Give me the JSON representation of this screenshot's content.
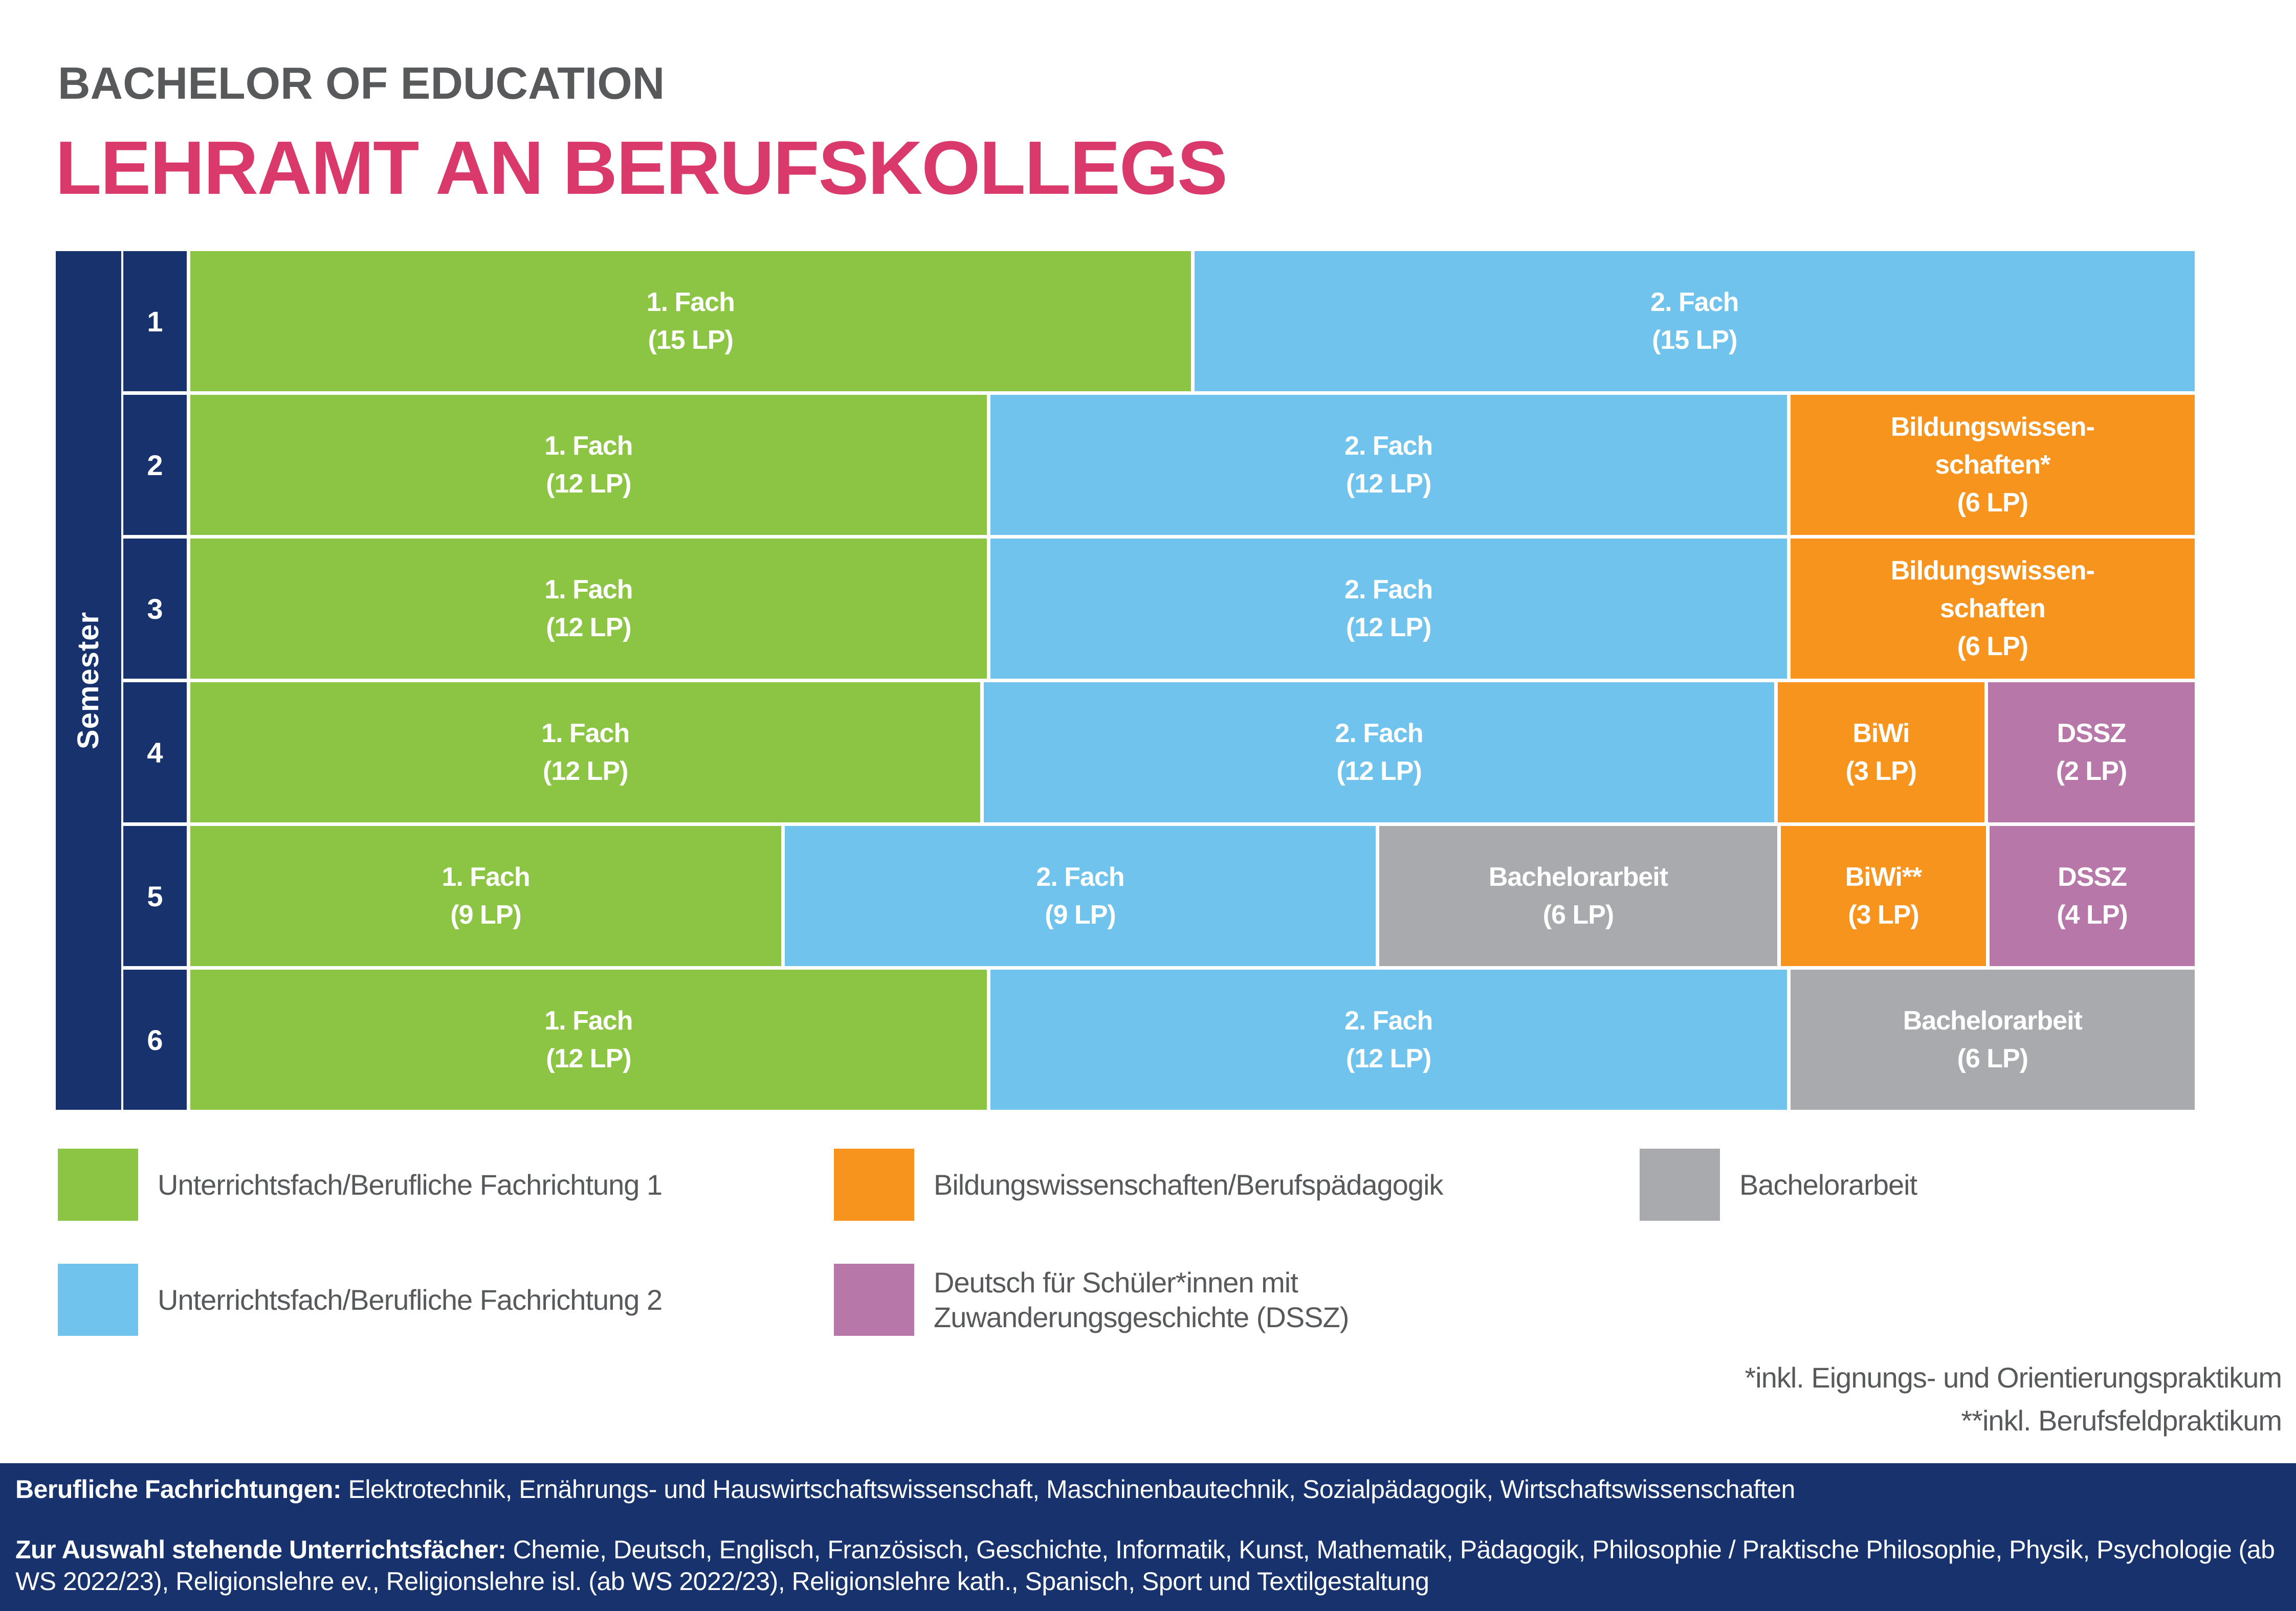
{
  "colors": {
    "navy": "#17326C",
    "green": "#8CC544",
    "blue": "#70C3EC",
    "orange": "#F7941E",
    "purple": "#B778A9",
    "gray": "#A8AAAD",
    "title_pink": "#D93A6B",
    "text_gray": "#58595B"
  },
  "header": {
    "eyebrow": "BACHELOR OF EDUCATION",
    "title": "LEHRAMT AN BERUFSKOLLEGS"
  },
  "plan": {
    "axis_label": "Semester",
    "rows": [
      {
        "semester": "1",
        "cells": [
          {
            "key": "fach1",
            "w": 50,
            "lines": [
              "1. Fach",
              "(15 LP)"
            ]
          },
          {
            "key": "fach2",
            "w": 50,
            "lines": [
              "2. Fach",
              "(15 LP)"
            ]
          }
        ]
      },
      {
        "semester": "2",
        "cells": [
          {
            "key": "fach1",
            "w": 40,
            "lines": [
              "1. Fach",
              "(12 LP)"
            ]
          },
          {
            "key": "fach2",
            "w": 40,
            "lines": [
              "2. Fach",
              "(12 LP)"
            ]
          },
          {
            "key": "biwi",
            "w": 20,
            "lines": [
              "Bildungswissen-",
              "schaften*",
              "(6 LP)"
            ]
          }
        ]
      },
      {
        "semester": "3",
        "cells": [
          {
            "key": "fach1",
            "w": 40,
            "lines": [
              "1. Fach",
              "(12 LP)"
            ]
          },
          {
            "key": "fach2",
            "w": 40,
            "lines": [
              "2. Fach",
              "(12 LP)"
            ]
          },
          {
            "key": "biwi",
            "w": 20,
            "lines": [
              "Bildungswissen-",
              "schaften",
              "(6 LP)"
            ]
          }
        ]
      },
      {
        "semester": "4",
        "cells": [
          {
            "key": "fach1",
            "w": 40,
            "lines": [
              "1. Fach",
              "(12 LP)"
            ]
          },
          {
            "key": "fach2",
            "w": 40,
            "lines": [
              "2. Fach",
              "(12 LP)"
            ]
          },
          {
            "key": "biwi",
            "w": 10,
            "lines": [
              "BiWi",
              "(3 LP)"
            ]
          },
          {
            "key": "dssz",
            "w": 10,
            "lines": [
              "DSSZ",
              "(2 LP)"
            ]
          }
        ]
      },
      {
        "semester": "5",
        "cells": [
          {
            "key": "fach1",
            "w": 30,
            "lines": [
              "1. Fach",
              "(9 LP)"
            ]
          },
          {
            "key": "fach2",
            "w": 30,
            "lines": [
              "2. Fach",
              "(9 LP)"
            ]
          },
          {
            "key": "ba",
            "w": 20,
            "lines": [
              "Bachelorarbeit",
              "(6 LP)"
            ]
          },
          {
            "key": "biwi",
            "w": 10,
            "lines": [
              "BiWi**",
              "(3 LP)"
            ]
          },
          {
            "key": "dssz",
            "w": 10,
            "lines": [
              "DSSZ",
              "(4 LP)"
            ]
          }
        ]
      },
      {
        "semester": "6",
        "cells": [
          {
            "key": "fach1",
            "w": 40,
            "lines": [
              "1. Fach",
              "(12 LP)"
            ]
          },
          {
            "key": "fach2",
            "w": 40,
            "lines": [
              "2. Fach",
              "(12 LP)"
            ]
          },
          {
            "key": "ba",
            "w": 20,
            "lines": [
              "Bachelorarbeit",
              "(6 LP)"
            ]
          }
        ]
      }
    ]
  },
  "legend": {
    "items": [
      {
        "key": "fach1",
        "lines": [
          "Unterrichtsfach/Berufliche Fachrichtung 1"
        ]
      },
      {
        "key": "biwi",
        "lines": [
          "Bildungswissenschaften/Berufspädagogik"
        ]
      },
      {
        "key": "ba",
        "lines": [
          "Bachelorarbeit"
        ]
      },
      {
        "key": "fach2",
        "lines": [
          "Unterrichtsfach/Berufliche Fachrichtung 2"
        ]
      },
      {
        "key": "dssz",
        "lines": [
          "Deutsch für Schüler*innen mit",
          "Zuwanderungsgeschichte (DSSZ)"
        ]
      }
    ]
  },
  "footnotes": [
    "*inkl. Eignungs- und Orientierungspraktikum",
    "**inkl. Berufsfeldpraktikum"
  ],
  "footer": {
    "line1_label": "Berufliche Fachrichtungen:",
    "line1_text": " Elektrotechnik, Ernährungs- und Hauswirtschaftswissenschaft, Maschinenbautechnik, Sozialpädagogik, Wirtschaftswissenschaften",
    "line2_label": "Zur Auswahl stehende Unterrichtsfächer:",
    "line2_text": " Chemie, Deutsch, Englisch, Französisch, Geschichte, Informatik, Kunst, Mathematik, Pädagogik, Philosophie / Praktische Philosophie, Physik, Psychologie (ab WS 2022/23), Religionslehre ev., Religionslehre isl. (ab WS 2022/23), Religionslehre kath., Spanisch, Sport und Textilgestaltung"
  }
}
